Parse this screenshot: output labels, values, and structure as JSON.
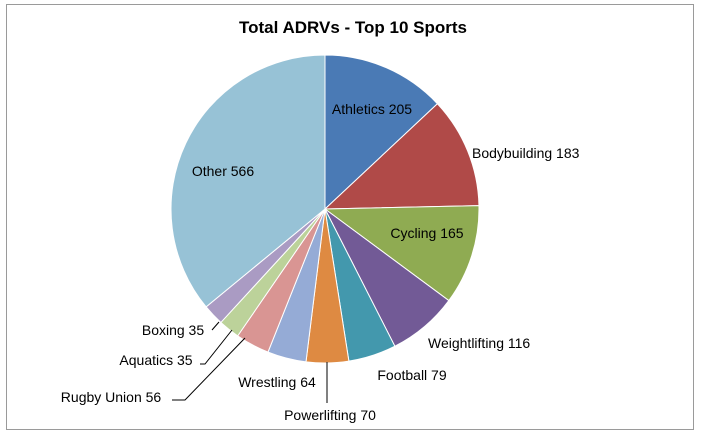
{
  "chart_data": {
    "type": "pie",
    "title": "Total ADRVs - Top 10 Sports",
    "categories": [
      "Athletics",
      "Bodybuilding",
      "Cycling",
      "Weightlifting",
      "Football",
      "Powerlifting",
      "Wrestling",
      "Rugby Union",
      "Aquatics",
      "Boxing",
      "Other"
    ],
    "values": [
      205,
      183,
      165,
      116,
      79,
      70,
      64,
      56,
      35,
      35,
      566
    ],
    "labels": [
      "Athletics 205",
      "Bodybuilding 183",
      "Cycling 165",
      "Weightlifting 116",
      "Football 79",
      "Powerlifting 70",
      "Wrestling 64",
      "Rugby Union 56",
      "Aquatics 35",
      "Boxing 35",
      "Other 566"
    ],
    "colors": [
      "#4a7ab5",
      "#b04a48",
      "#8fab52",
      "#725a96",
      "#4398ad",
      "#de8a42",
      "#95abd6",
      "#d99593",
      "#bcd29a",
      "#aa9bc3",
      "#97c2d6"
    ],
    "start_angle_deg": 0,
    "direction": "clockwise",
    "legend": "none"
  }
}
